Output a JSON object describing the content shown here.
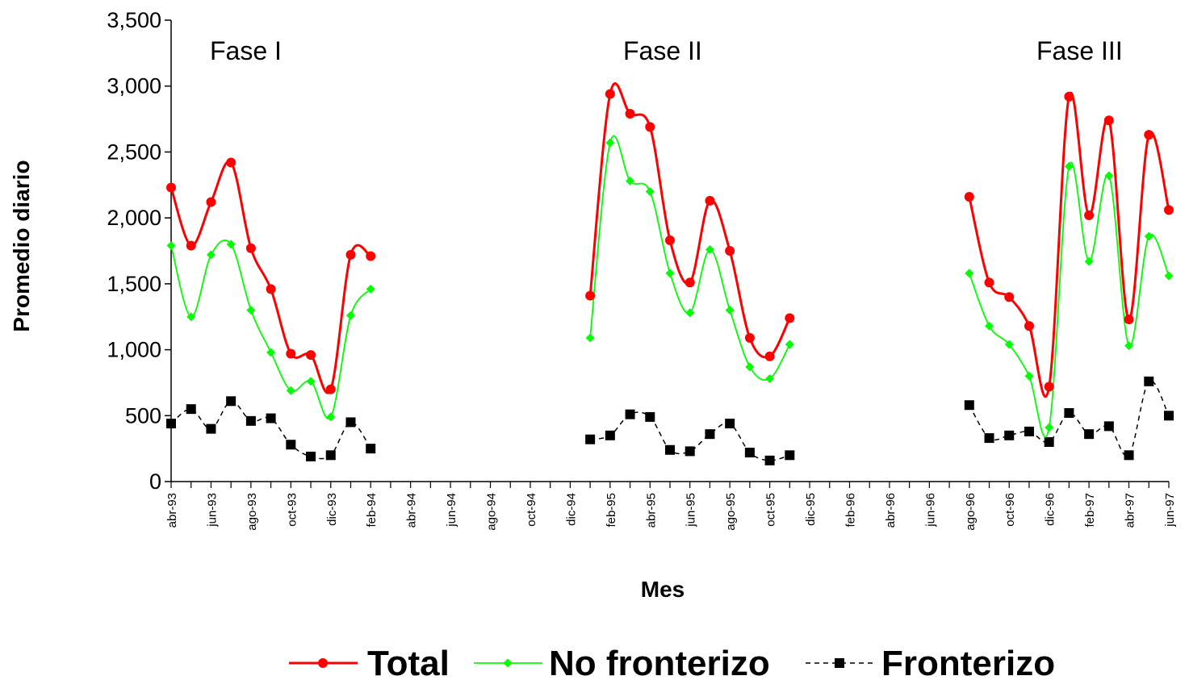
{
  "chart_data": {
    "type": "line",
    "xlabel": "Mes",
    "ylabel": "Promedio diario",
    "ylim": [
      0,
      3500
    ],
    "yticks": [
      "0",
      "500",
      "1,000",
      "1,500",
      "2,000",
      "2,500",
      "3,000",
      "3,500"
    ],
    "x_tick_labels": [
      "abr-93",
      "jun-93",
      "ago-93",
      "oct-93",
      "dic-93",
      "feb-94",
      "abr-94",
      "jun-94",
      "ago-94",
      "oct-94",
      "dic-94",
      "feb-95",
      "abr-95",
      "jun-95",
      "ago-95",
      "oct-95",
      "dic-95",
      "feb-96",
      "abr-96",
      "jun-96",
      "ago-96",
      "oct-96",
      "dic-96",
      "feb-97",
      "abr-97",
      "jun-97"
    ],
    "x_month_count": 51,
    "annotations": [
      "Fase I",
      "Fase II",
      "Fase III"
    ],
    "legend_position": "bottom",
    "grid": false,
    "series": [
      {
        "name": "Total",
        "color": "#ff0000",
        "marker": "circle",
        "line": "solid",
        "segments": [
          {
            "x": [
              "abr-93",
              "may-93",
              "jun-93",
              "jul-93",
              "ago-93",
              "sep-93",
              "oct-93",
              "nov-93",
              "dic-93",
              "ene-94",
              "feb-94"
            ],
            "y": [
              2230,
              1790,
              2120,
              2420,
              1770,
              1460,
              970,
              960,
              700,
              1720,
              1710
            ]
          },
          {
            "x": [
              "ene-95",
              "feb-95",
              "mar-95",
              "abr-95",
              "may-95",
              "jun-95",
              "jul-95",
              "ago-95",
              "sep-95",
              "oct-95",
              "nov-95"
            ],
            "y": [
              1410,
              2940,
              2790,
              2690,
              1830,
              1510,
              2130,
              1750,
              1090,
              950,
              1240
            ]
          },
          {
            "x": [
              "ago-96",
              "sep-96",
              "oct-96",
              "nov-96",
              "dic-96",
              "ene-97",
              "feb-97",
              "mar-97",
              "abr-97",
              "may-97",
              "jun-97"
            ],
            "y": [
              2160,
              1510,
              1400,
              1180,
              720,
              2920,
              2020,
              2740,
              1230,
              2630,
              2060
            ]
          }
        ]
      },
      {
        "name": "No fronterizo",
        "color": "#00ff00",
        "marker": "diamond",
        "line": "solid",
        "segments": [
          {
            "x": [
              "abr-93",
              "may-93",
              "jun-93",
              "jul-93",
              "ago-93",
              "sep-93",
              "oct-93",
              "nov-93",
              "dic-93",
              "ene-94",
              "feb-94"
            ],
            "y": [
              1790,
              1250,
              1720,
              1800,
              1300,
              980,
              690,
              760,
              490,
              1260,
              1460
            ]
          },
          {
            "x": [
              "ene-95",
              "feb-95",
              "mar-95",
              "abr-95",
              "may-95",
              "jun-95",
              "jul-95",
              "ago-95",
              "sep-95",
              "oct-95",
              "nov-95"
            ],
            "y": [
              1090,
              2570,
              2280,
              2200,
              1580,
              1280,
              1760,
              1300,
              870,
              780,
              1040
            ]
          },
          {
            "x": [
              "ago-96",
              "sep-96",
              "oct-96",
              "nov-96",
              "dic-96",
              "ene-97",
              "feb-97",
              "mar-97",
              "abr-97",
              "may-97",
              "jun-97"
            ],
            "y": [
              1580,
              1180,
              1040,
              800,
              410,
              2390,
              1670,
              2320,
              1030,
              1860,
              1560
            ]
          }
        ]
      },
      {
        "name": "Fronterizo",
        "color": "#000000",
        "marker": "square",
        "line": "dashed",
        "segments": [
          {
            "x": [
              "abr-93",
              "may-93",
              "jun-93",
              "jul-93",
              "ago-93",
              "sep-93",
              "oct-93",
              "nov-93",
              "dic-93",
              "ene-94",
              "feb-94"
            ],
            "y": [
              440,
              550,
              400,
              610,
              460,
              480,
              280,
              190,
              200,
              450,
              250
            ]
          },
          {
            "x": [
              "ene-95",
              "feb-95",
              "mar-95",
              "abr-95",
              "may-95",
              "jun-95",
              "jul-95",
              "ago-95",
              "sep-95",
              "oct-95",
              "nov-95"
            ],
            "y": [
              320,
              350,
              510,
              490,
              240,
              230,
              360,
              440,
              220,
              160,
              200
            ]
          },
          {
            "x": [
              "ago-96",
              "sep-96",
              "oct-96",
              "nov-96",
              "dic-96",
              "ene-97",
              "feb-97",
              "mar-97",
              "abr-97",
              "may-97",
              "jun-97"
            ],
            "y": [
              580,
              330,
              350,
              380,
              300,
              520,
              360,
              420,
              200,
              760,
              500
            ]
          }
        ]
      }
    ]
  }
}
